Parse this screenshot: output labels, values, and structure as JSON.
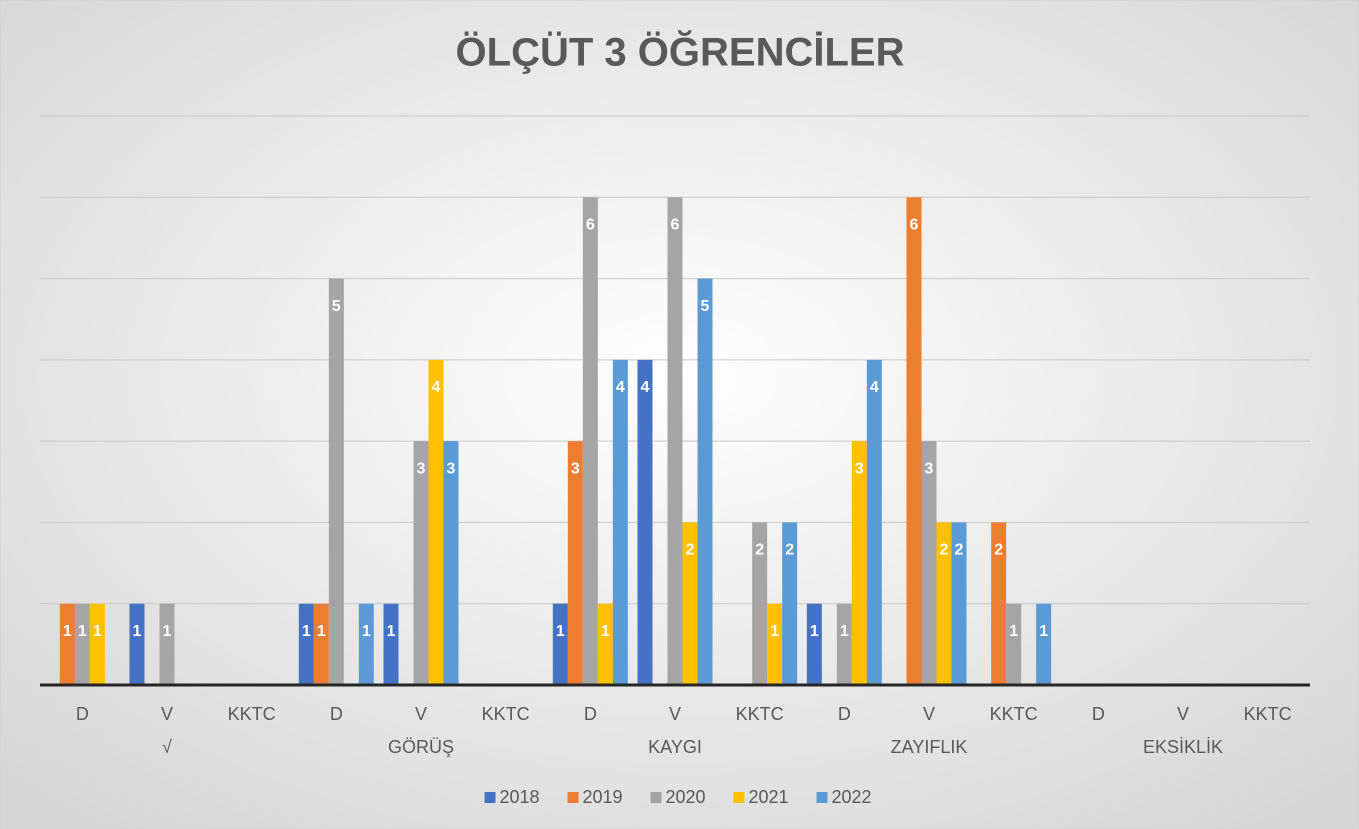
{
  "chart_data": {
    "type": "bar",
    "title": "ÖLÇÜT 3 ÖĞRENCİLER",
    "categories": [
      "D",
      "V",
      "KKTC",
      "D",
      "V",
      "KKTC",
      "D",
      "V",
      "KKTC",
      "D",
      "V",
      "KKTC",
      "D",
      "V",
      "KKTC"
    ],
    "groups": [
      "√",
      "GÖRÜŞ",
      "KAYGI",
      "ZAYIFLIK",
      "EKSİKLİK"
    ],
    "series": [
      {
        "name": "2018",
        "color": "#4472c4",
        "values": [
          0,
          1,
          0,
          1,
          1,
          0,
          1,
          4,
          0,
          1,
          0,
          0,
          0,
          0,
          0
        ]
      },
      {
        "name": "2019",
        "color": "#ed7d31",
        "values": [
          1,
          0,
          0,
          1,
          0,
          0,
          3,
          0,
          0,
          0,
          6,
          2,
          0,
          0,
          0
        ]
      },
      {
        "name": "2020",
        "color": "#a5a5a5",
        "values": [
          1,
          1,
          0,
          5,
          3,
          0,
          6,
          6,
          2,
          1,
          3,
          1,
          0,
          0,
          0
        ]
      },
      {
        "name": "2021",
        "color": "#ffc000",
        "values": [
          1,
          0,
          0,
          0,
          4,
          0,
          1,
          2,
          1,
          3,
          2,
          0,
          0,
          0,
          0
        ]
      },
      {
        "name": "2022",
        "color": "#5b9bd5",
        "values": [
          0,
          0,
          0,
          1,
          3,
          0,
          4,
          5,
          2,
          4,
          2,
          1,
          0,
          0,
          0
        ]
      }
    ],
    "ylim": [
      0,
      7
    ],
    "yticks": [
      1,
      2,
      3,
      4,
      5,
      6,
      7
    ],
    "grid": true,
    "legend": "bottom"
  }
}
